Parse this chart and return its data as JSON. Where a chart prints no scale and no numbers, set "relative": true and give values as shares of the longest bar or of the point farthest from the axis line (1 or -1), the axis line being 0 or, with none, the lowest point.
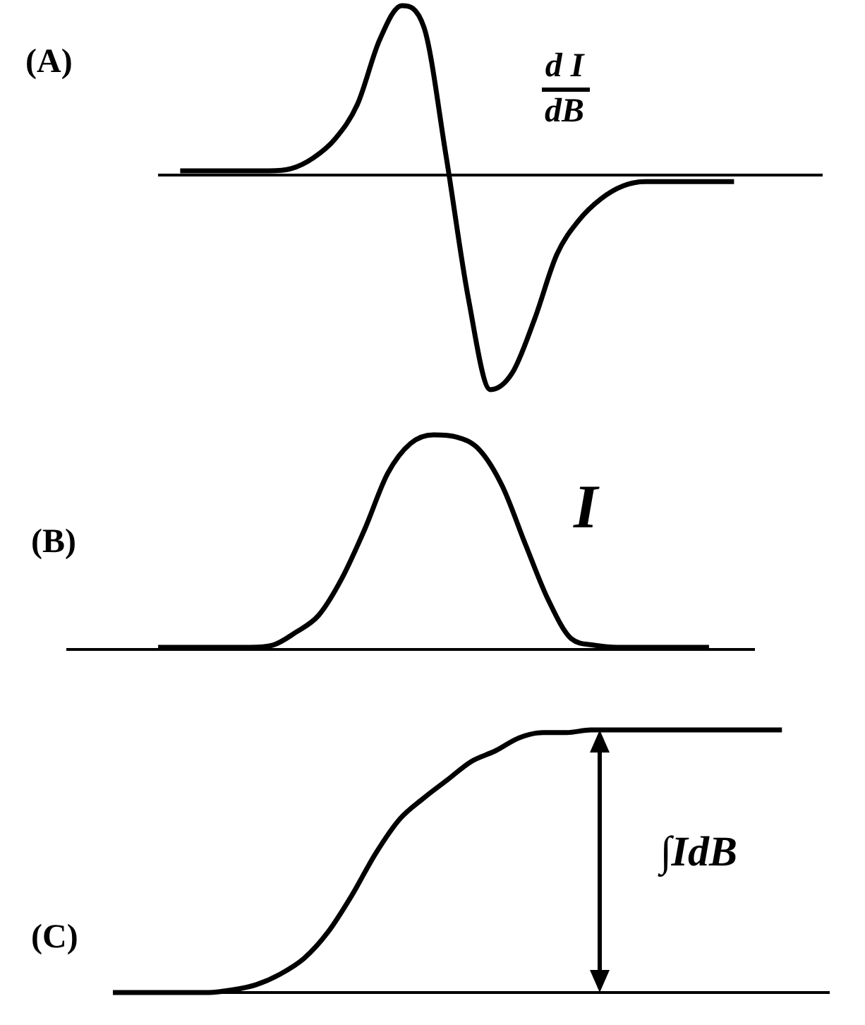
{
  "chart_data": [
    {
      "type": "line",
      "relative": true,
      "annotations": [
        "(A)",
        "d I",
        "dB"
      ],
      "categories": [
        null,
        null,
        null,
        null,
        null,
        null,
        null,
        null,
        null,
        null,
        null,
        null,
        null,
        null,
        null,
        null,
        null,
        null,
        null,
        null,
        null,
        null,
        null,
        null,
        null,
        null,
        null,
        null,
        null,
        null,
        null
      ],
      "series": [
        {
          "color": "#000000",
          "values": [
            null,
            0.02,
            0.02,
            0.02,
            0.02,
            0.02,
            0.03,
            0.08,
            0.17,
            0.33,
            0.63,
            0.79,
            0.69,
            0.09,
            -0.57,
            -1,
            -0.92,
            -0.67,
            -0.37,
            -0.21,
            -0.11,
            -0.05,
            -0.03,
            -0.03,
            -0.03,
            -0.03,
            -0.03,
            null,
            null,
            null,
            null
          ]
        }
      ]
    },
    {
      "type": "line",
      "relative": true,
      "annotations": [
        "(B)",
        "I"
      ],
      "categories": [
        null,
        null,
        null,
        null,
        null,
        null,
        null,
        null,
        null,
        null,
        null,
        null,
        null,
        null,
        null,
        null,
        null,
        null,
        null,
        null,
        null,
        null,
        null,
        null,
        null,
        null,
        null,
        null,
        null,
        null,
        null
      ],
      "series": [
        {
          "color": "#000000",
          "values": [
            null,
            null,
            null,
            null,
            0.01,
            0.01,
            0.01,
            0.01,
            0.01,
            0.02,
            0.08,
            0.16,
            0.33,
            0.56,
            0.82,
            0.96,
            1,
            0.99,
            0.93,
            0.76,
            0.49,
            0.23,
            0.05,
            0.02,
            0.01,
            0.01,
            0.01,
            0.01,
            0.01,
            null,
            null
          ]
        }
      ]
    },
    {
      "type": "line",
      "relative": true,
      "annotations": [
        "(C)",
        "∫IdB"
      ],
      "categories": [
        null,
        null,
        null,
        null,
        null,
        null,
        null,
        null,
        null,
        null,
        null,
        null,
        null,
        null,
        null,
        null,
        null,
        null,
        null,
        null,
        null,
        null,
        null,
        null,
        null,
        null,
        null,
        null,
        null,
        null,
        null
      ],
      "series": [
        {
          "color": "#000000",
          "values": [
            0,
            0,
            0,
            0,
            0,
            0.01,
            0.03,
            0.07,
            0.13,
            0.23,
            0.37,
            0.53,
            0.66,
            0.74,
            0.81,
            0.88,
            0.92,
            0.97,
            0.99,
            0.99,
            1,
            1,
            1,
            1,
            1,
            1,
            1,
            1,
            1,
            null,
            null
          ]
        }
      ]
    }
  ]
}
